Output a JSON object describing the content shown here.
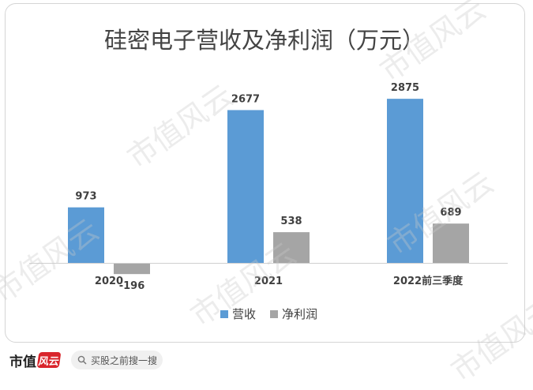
{
  "chart_data": {
    "type": "bar",
    "title": "硅密电子营收及净利润（万元）",
    "categories": [
      "2020",
      "2021",
      "2022前三季度"
    ],
    "series": [
      {
        "name": "营收",
        "values": [
          973,
          2677,
          2875
        ],
        "color": "#5b9bd5"
      },
      {
        "name": "净利润",
        "values": [
          -196,
          538,
          689
        ],
        "color": "#a5a5a5"
      }
    ],
    "data_labels": [
      [
        "973",
        "2677",
        "2875"
      ],
      [
        "-196",
        "538",
        "689"
      ]
    ],
    "ylim": [
      -250,
      3300
    ],
    "grid": false,
    "legend_position": "bottom"
  },
  "watermark": {
    "text": "市值风云"
  },
  "footer": {
    "brand_text": "市值",
    "brand_mark": "风云",
    "search_icon": "search-icon",
    "search_placeholder": "买股之前搜一搜"
  }
}
